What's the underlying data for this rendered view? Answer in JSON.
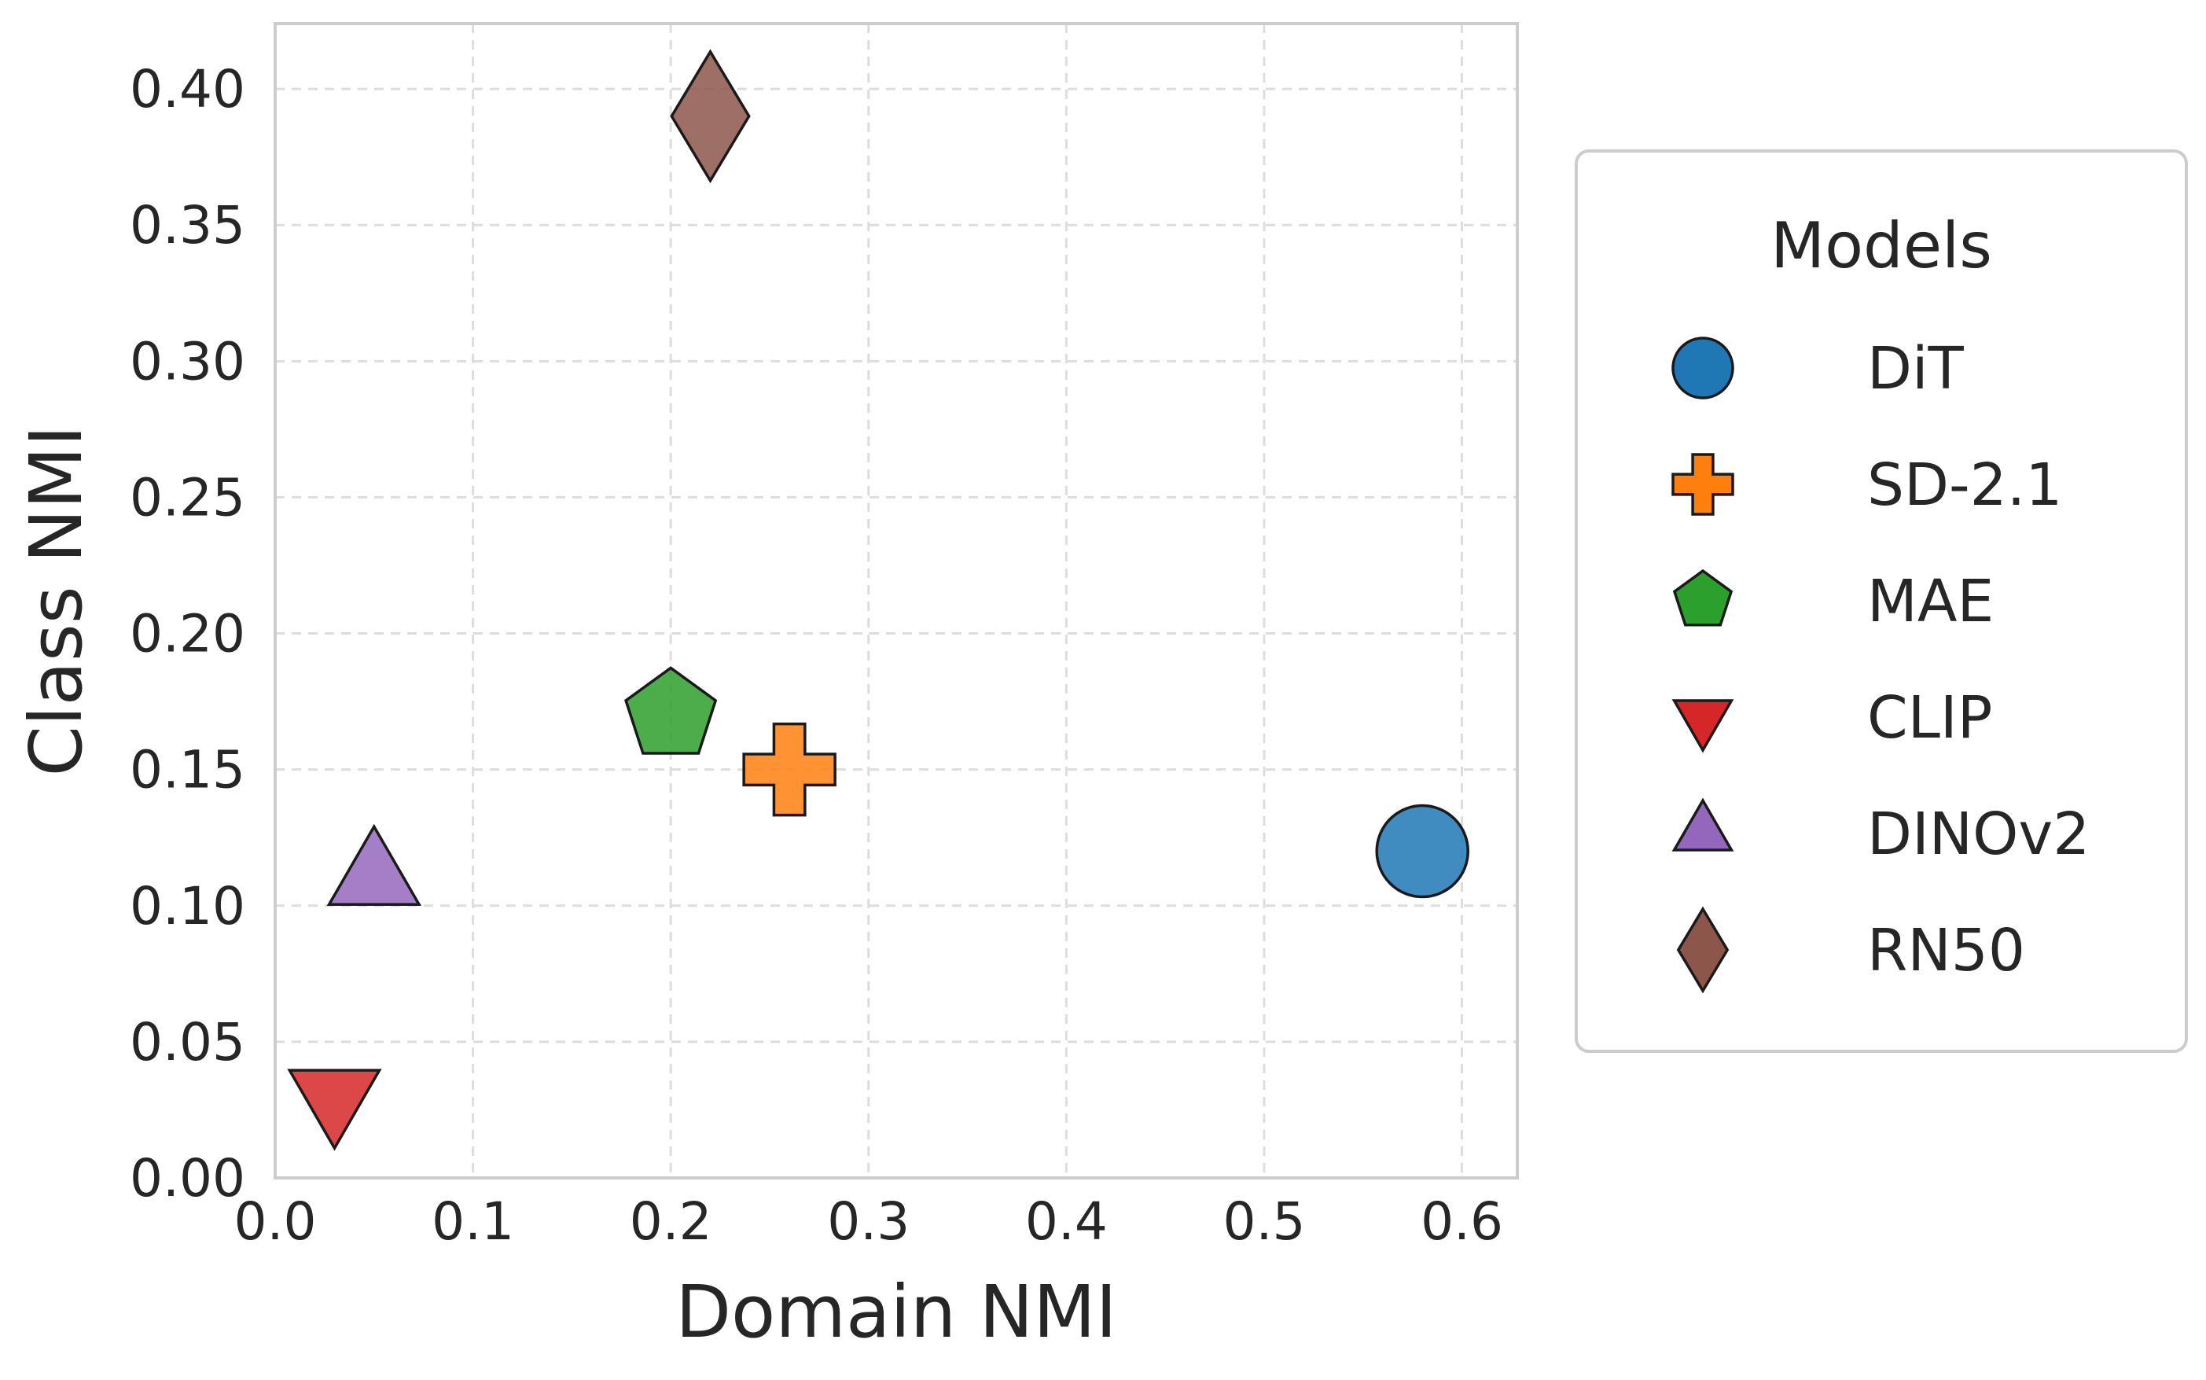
{
  "chart_data": {
    "type": "scatter",
    "title": "",
    "xlabel": "Domain NMI",
    "ylabel": "Class NMI",
    "xlim": [
      0.0,
      0.628
    ],
    "ylim": [
      0.0,
      0.424
    ],
    "xticks": [
      0.0,
      0.1,
      0.2,
      0.3,
      0.4,
      0.5,
      0.6
    ],
    "xtick_labels": [
      "0.0",
      "0.1",
      "0.2",
      "0.3",
      "0.4",
      "0.5",
      "0.6"
    ],
    "yticks": [
      0.0,
      0.05,
      0.1,
      0.15,
      0.2,
      0.25,
      0.3,
      0.35,
      0.4
    ],
    "ytick_labels": [
      "0.00",
      "0.05",
      "0.10",
      "0.15",
      "0.20",
      "0.25",
      "0.30",
      "0.35",
      "0.40"
    ],
    "grid": true,
    "legend": {
      "title": "Models",
      "position": "outside-right"
    },
    "series": [
      {
        "name": "DiT",
        "x": 0.58,
        "y": 0.12,
        "color": "#1f77b4",
        "marker": "circle"
      },
      {
        "name": "SD-2.1",
        "x": 0.26,
        "y": 0.15,
        "color": "#ff7f0e",
        "marker": "plus"
      },
      {
        "name": "MAE",
        "x": 0.2,
        "y": 0.17,
        "color": "#2ca02c",
        "marker": "pentagon"
      },
      {
        "name": "CLIP",
        "x": 0.03,
        "y": 0.03,
        "color": "#d62728",
        "marker": "triangle-down"
      },
      {
        "name": "DINOv2",
        "x": 0.05,
        "y": 0.11,
        "color": "#9467bd",
        "marker": "triangle-up"
      },
      {
        "name": "RN50",
        "x": 0.22,
        "y": 0.39,
        "color": "#8c564b",
        "marker": "diamond"
      }
    ]
  }
}
